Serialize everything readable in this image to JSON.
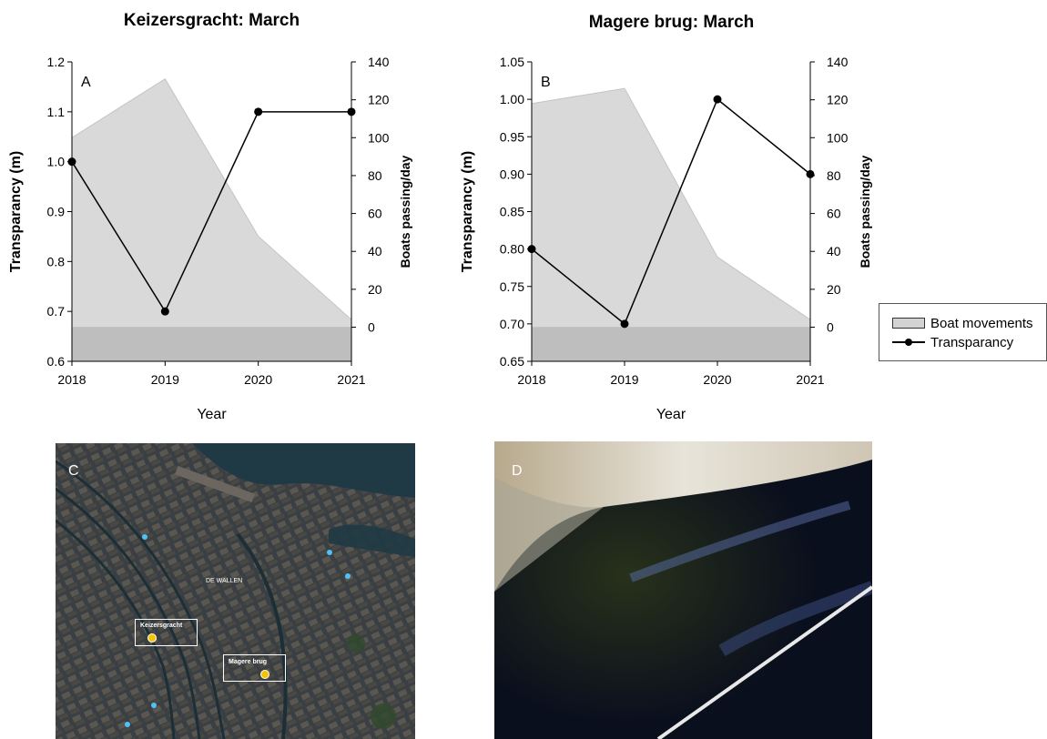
{
  "chart_data": [
    {
      "panel": "A",
      "type": "line+area",
      "title": "Keizersgracht: March",
      "xlabel": "Year",
      "ylabel": "Transparancy (m)",
      "y2label": "Boats passing/day",
      "categories": [
        "2018",
        "2019",
        "2020",
        "2021"
      ],
      "ylim": [
        0.6,
        1.2
      ],
      "yticks": [
        "0.6",
        "0.7",
        "0.8",
        "0.9",
        "1.0",
        "1.1",
        "1.2"
      ],
      "y2lim": [
        -18,
        140
      ],
      "y2ticks": [
        "0",
        "20",
        "40",
        "60",
        "80",
        "100",
        "120",
        "140"
      ],
      "series": [
        {
          "name": "Boat movements",
          "axis": "right",
          "type": "area",
          "values": [
            100,
            131,
            48,
            4
          ]
        },
        {
          "name": "Transparancy",
          "axis": "left",
          "type": "line",
          "values": [
            1.0,
            0.7,
            1.1,
            1.1
          ]
        }
      ]
    },
    {
      "panel": "B",
      "type": "line+area",
      "title": "Magere brug: March",
      "xlabel": "Year",
      "ylabel": "Transparancy (m)",
      "y2label": "Boats passing/day",
      "categories": [
        "2018",
        "2019",
        "2020",
        "2021"
      ],
      "ylim": [
        0.65,
        1.05
      ],
      "yticks": [
        "0.65",
        "0.70",
        "0.75",
        "0.80",
        "0.85",
        "0.90",
        "0.95",
        "1.00",
        "1.05"
      ],
      "y2lim": [
        -18,
        140
      ],
      "y2ticks": [
        "0",
        "20",
        "40",
        "60",
        "80",
        "100",
        "120",
        "140"
      ],
      "series": [
        {
          "name": "Boat movements",
          "axis": "right",
          "type": "area",
          "values": [
            118,
            126,
            37,
            4
          ]
        },
        {
          "name": "Transparancy",
          "axis": "left",
          "type": "line",
          "values": [
            0.8,
            0.7,
            1.0,
            0.9
          ]
        }
      ]
    }
  ],
  "legend": {
    "items": [
      {
        "label": "Boat movements",
        "kind": "area",
        "color": "#d3d3d3"
      },
      {
        "label": "Transparancy",
        "kind": "line-marker",
        "color": "#000000"
      }
    ]
  },
  "colors": {
    "area_fill": "#d9d9d9",
    "below_zero_fill": "#bebebe",
    "line": "#000000"
  },
  "photos": {
    "map": {
      "label": "C",
      "markers": [
        "Keizersgracht",
        "Magere brug"
      ],
      "place_labels": [
        "DE WALLEN"
      ]
    },
    "water": {
      "label": "D"
    }
  }
}
